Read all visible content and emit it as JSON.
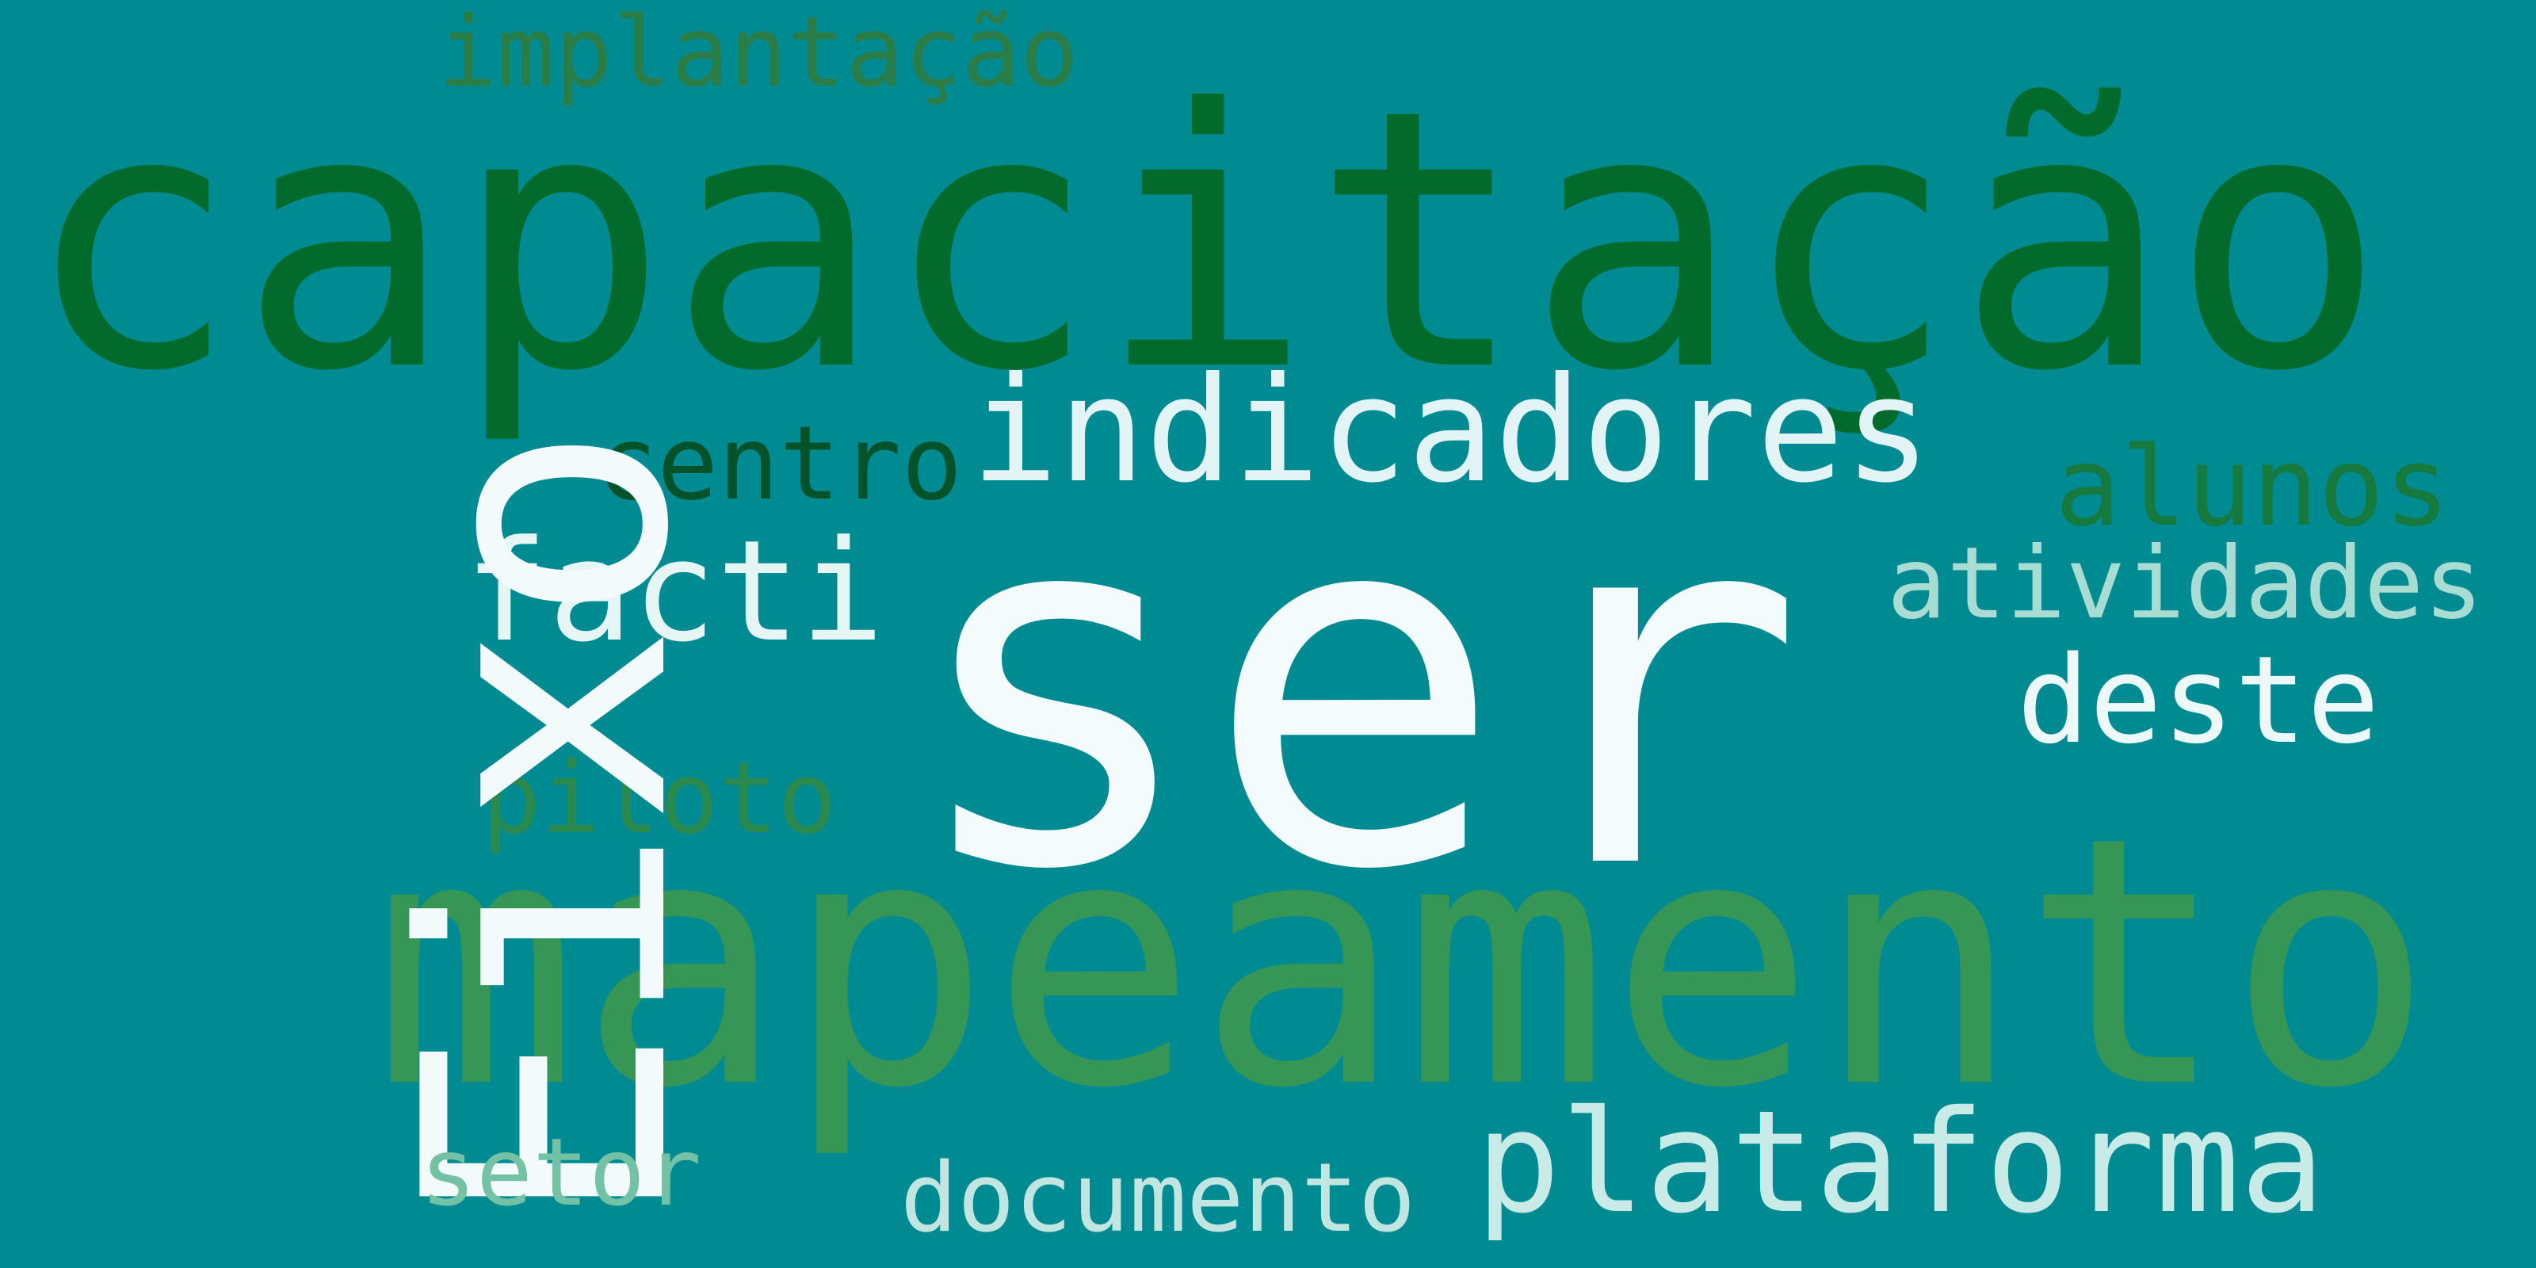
{
  "background_color": "#008B93",
  "words": {
    "implantacao": {
      "text": "implantação",
      "color": "#2A7D46"
    },
    "capacitacao": {
      "text": "capacitação",
      "color": "#026B2C"
    },
    "indicadores": {
      "text": "indicadores",
      "color": "#E2F4F5"
    },
    "centro": {
      "text": "centro",
      "color": "#03522A"
    },
    "alunos": {
      "text": "alunos",
      "color": "#167A3E"
    },
    "ser": {
      "text": "ser",
      "color": "#F4FBFC"
    },
    "facti": {
      "text": "facti",
      "color": "#E6F6F4"
    },
    "atividades": {
      "text": "atividades",
      "color": "#A9DCD2"
    },
    "deste": {
      "text": "deste",
      "color": "#EDF8F8"
    },
    "piloto": {
      "text": "piloto",
      "color": "#2A8A4D"
    },
    "eixo": {
      "text": "Eixo",
      "color": "#F2FAFB"
    },
    "mapeamento": {
      "text": "mapeamento",
      "color": "#359655"
    },
    "plataforma": {
      "text": "plataforma",
      "color": "#C9EBE7"
    },
    "setor": {
      "text": "setor",
      "color": "#74C2A5"
    },
    "documento": {
      "text": "documento",
      "color": "#C1E6E1"
    }
  }
}
